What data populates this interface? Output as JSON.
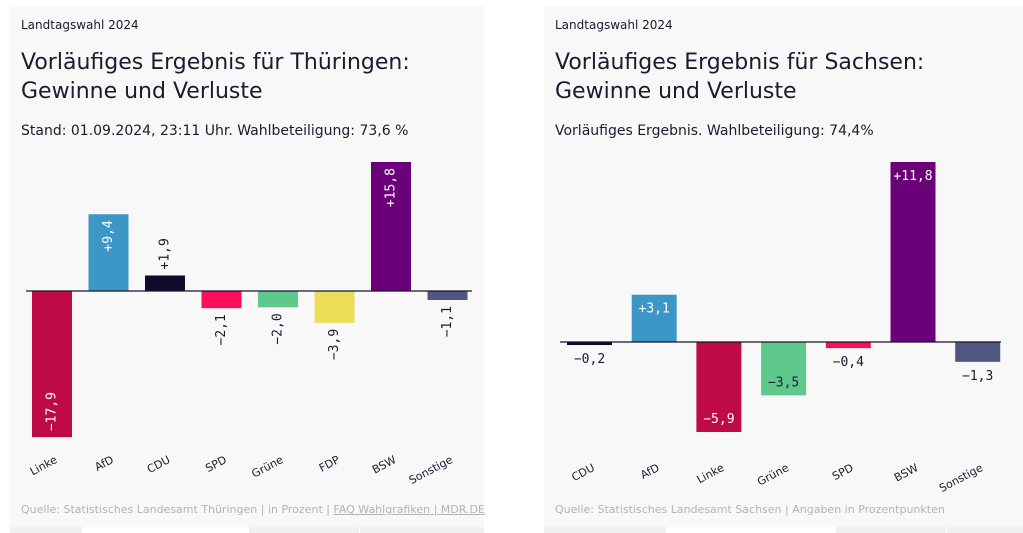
{
  "chart_data": [
    {
      "type": "bar",
      "kicker": "Landtagswahl 2024",
      "title": "Vorläufiges Ergebnis für Thüringen: Gewinne und Verluste",
      "subtitle": "Stand: 01.09.2024, 23:11 Uhr. Wahlbeteiligung: 73,6 %",
      "categories": [
        "Linke",
        "AfD",
        "CDU",
        "SPD",
        "Grüne",
        "FDP",
        "BSW",
        "Sonstige"
      ],
      "values": [
        -17.9,
        9.4,
        1.9,
        -2.1,
        -2.0,
        -3.9,
        15.8,
        -1.1
      ],
      "labels": [
        "−17,9",
        "+9,4",
        "+1,9",
        "−2,1",
        "−2,0",
        "−3,9",
        "+15,8",
        "−1,1"
      ],
      "colors": [
        "#be0a46",
        "#3c97c6",
        "#0f0c2b",
        "#ff0d5d",
        "#5ec88d",
        "#ecdd58",
        "#6b0178",
        "#4f567f"
      ],
      "label_orientation": "vertical",
      "xlabel": "",
      "ylabel": "",
      "ylim": [
        -17.9,
        15.8
      ],
      "grid": false,
      "source": "Quelle: Statistisches Landesamt Thüringen | in Prozent |",
      "link": "FAQ Wahlgrafiken | MDR.DE"
    },
    {
      "type": "bar",
      "kicker": "Landtagswahl 2024",
      "title": "Vorläufiges Ergebnis für Sachsen: Gewinne und Verluste",
      "subtitle": "Vorläufiges Ergebnis. Wahlbeteiligung: 74,4%",
      "categories": [
        "CDU",
        "AfD",
        "Linke",
        "Grüne",
        "SPD",
        "BSW",
        "Sonstige"
      ],
      "values": [
        -0.2,
        3.1,
        -5.9,
        -3.5,
        -0.4,
        11.8,
        -1.3
      ],
      "labels": [
        "−0,2",
        "+3,1",
        "−5,9",
        "−3,5",
        "−0,4",
        "+11,8",
        "−1,3"
      ],
      "colors": [
        "#0f0c2b",
        "#3c97c6",
        "#be0a46",
        "#5ec88d",
        "#ff0d5d",
        "#6b0178",
        "#4f567f"
      ],
      "label_orientation": "horizontal",
      "xlabel": "",
      "ylabel": "",
      "ylim": [
        -5.9,
        11.8
      ],
      "grid": false,
      "source": "Quelle: Statistisches Landesamt Sachsen | Angaben in Prozentpunkten",
      "link": ""
    }
  ]
}
